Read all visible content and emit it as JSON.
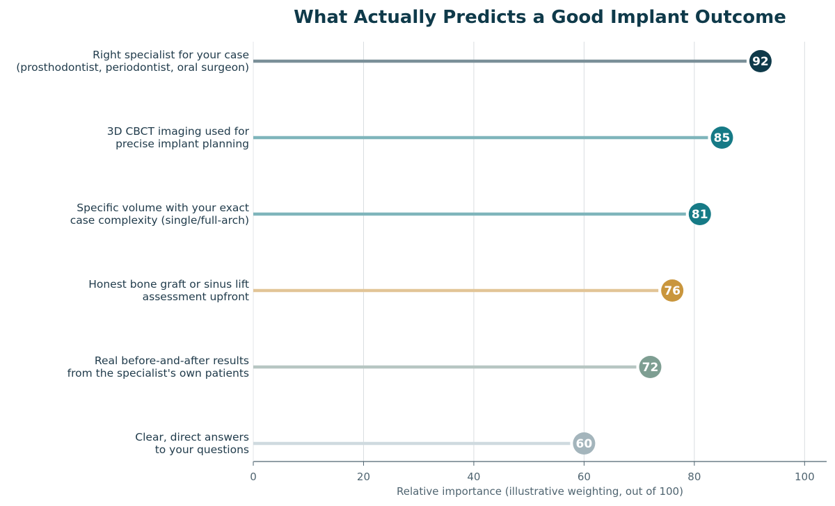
{
  "chart_data": {
    "type": "lollipop",
    "title": "What Actually Predicts a Good Implant Outcome",
    "xlabel": "Relative importance (illustrative weighting, out of 100)",
    "xlim": [
      0,
      104
    ],
    "xticks": [
      0,
      20,
      40,
      60,
      80,
      100
    ],
    "grid": "vertical",
    "items": [
      {
        "label": [
          "Right specialist for your case",
          "(prosthodontist, periodontist, oral surgeon)"
        ],
        "value": 92,
        "line_color": "#7a8f98",
        "dot_color": "#0f3a4a"
      },
      {
        "label": [
          "3D CBCT imaging used for",
          "precise implant planning"
        ],
        "value": 85,
        "line_color": "#7fb5bb",
        "dot_color": "#167a86"
      },
      {
        "label": [
          "Specific volume with your exact",
          "case complexity (single/full-arch)"
        ],
        "value": 81,
        "line_color": "#7fb5bb",
        "dot_color": "#167a86"
      },
      {
        "label": [
          "Honest bone graft or sinus lift",
          "assessment upfront"
        ],
        "value": 76,
        "line_color": "#e2c597",
        "dot_color": "#c9963d"
      },
      {
        "label": [
          "Real before-and-after results",
          "from the specialist's own patients"
        ],
        "value": 72,
        "line_color": "#b7c6c2",
        "dot_color": "#7e9e92"
      },
      {
        "label": [
          "Clear, direct answers",
          "to your questions"
        ],
        "value": 60,
        "line_color": "#cfdadf",
        "dot_color": "#a4b5bc"
      }
    ]
  }
}
